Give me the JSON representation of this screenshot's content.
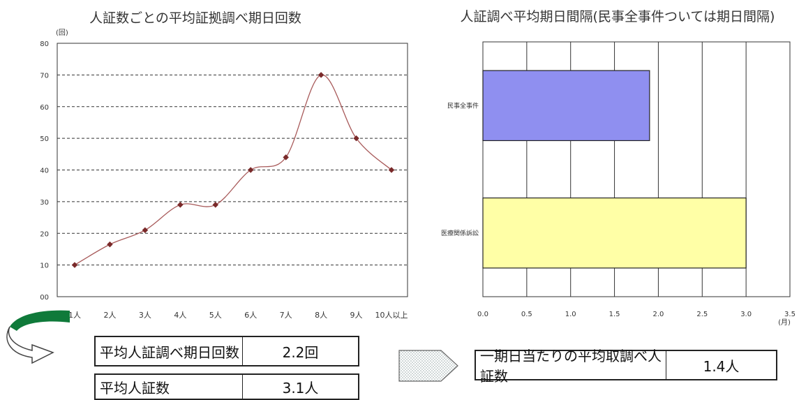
{
  "left_chart": {
    "title": "人証数ごとの平均証拠調べ期日回数",
    "unit": "(回)",
    "series_color": "#a85a5a",
    "marker_color": "#7a2a2a"
  },
  "right_chart": {
    "title": "人証調べ平均期日間隔(民事全事件ついては期日間隔)",
    "unit": "(月)",
    "bar_colors": [
      "#8f8ff0",
      "#ffffa6"
    ]
  },
  "chart_data": [
    {
      "type": "line",
      "title": "人証数ごとの平均証拠調べ期日回数",
      "ylabel": "(回)",
      "categories": [
        "1人",
        "2人",
        "3人",
        "4人",
        "5人",
        "6人",
        "7人",
        "8人",
        "9人",
        "10人以上"
      ],
      "values": [
        10,
        16.5,
        21,
        29,
        29,
        40,
        44,
        70,
        50,
        40
      ],
      "ylim": [
        0,
        80
      ],
      "yticks": [
        "00",
        "10",
        "20",
        "30",
        "40",
        "50",
        "60",
        "70",
        "80"
      ],
      "grid": "horizontal-dashed",
      "legend": "none"
    },
    {
      "type": "bar",
      "orientation": "horizontal",
      "title": "人証調べ平均期日間隔(民事全事件ついては期日間隔)",
      "xlabel": "(月)",
      "categories": [
        "民事全事件",
        "医療関係訴訟"
      ],
      "values": [
        1.9,
        3.0
      ],
      "xlim": [
        0,
        3.5
      ],
      "xticks": [
        "0.0",
        "0.5",
        "1.0",
        "1.5",
        "2.0",
        "2.5",
        "3.0",
        "3.5"
      ],
      "grid": "vertical",
      "legend": "none"
    }
  ],
  "summary_left": [
    {
      "label": "平均人証調べ期日回数",
      "value": "2.2回"
    },
    {
      "label": "平均人証数",
      "value": "3.1人"
    }
  ],
  "summary_right": [
    {
      "label": "一期日当たりの平均取調べ人証数",
      "value": "1.4人"
    }
  ],
  "icons": {
    "curved_arrow": "curved-arrow-icon",
    "outline_arrow": "outline-arrow-icon",
    "dotted_arrow": "dotted-arrow-icon",
    "arrow_green": "#0f7a3a"
  }
}
